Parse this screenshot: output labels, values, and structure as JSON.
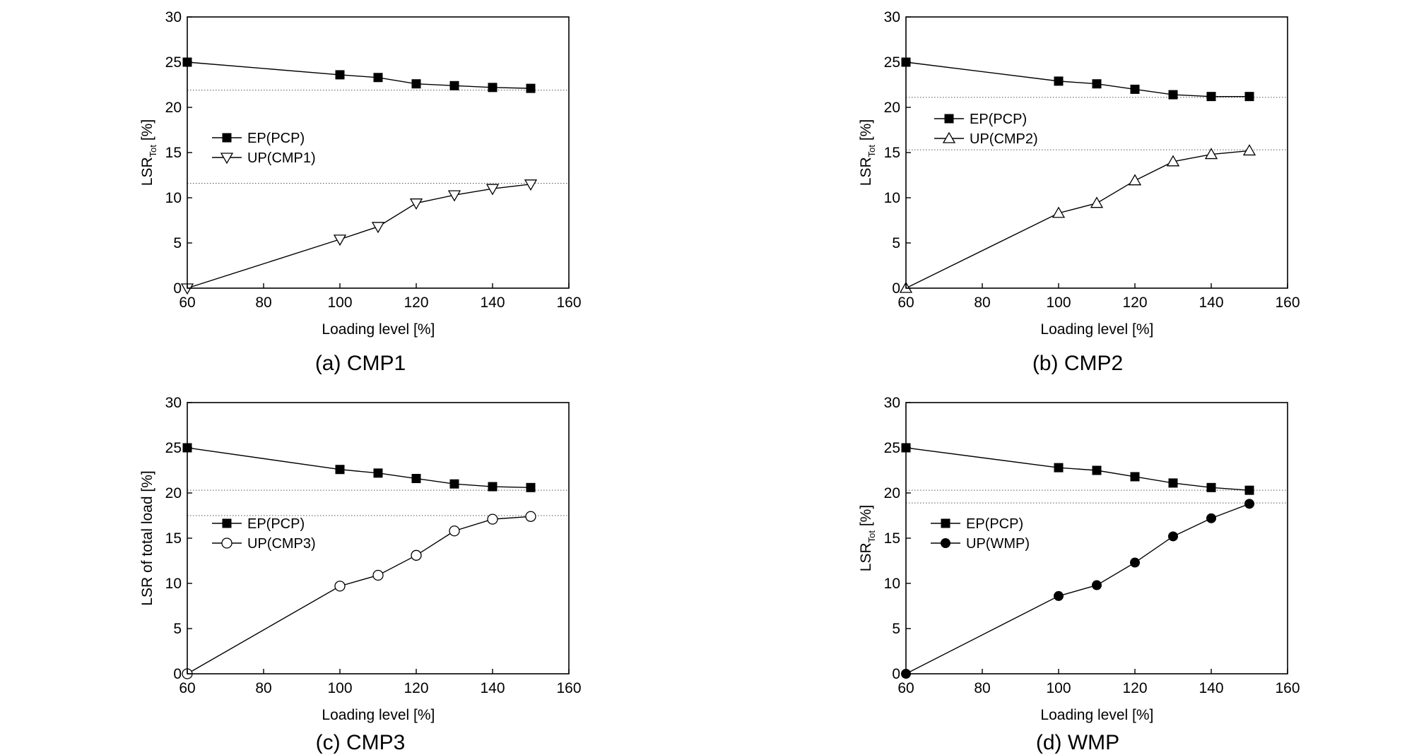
{
  "chart_data": [
    {
      "type": "line",
      "caption": "(a) CMP1",
      "xlabel": "Loading level [%]",
      "ylabel": "LSR",
      "ylabel_sub": "Tot",
      "ylabel_suffix": " [%]",
      "xlim": [
        60,
        160
      ],
      "ylim": [
        0,
        30
      ],
      "xticks": [
        60,
        80,
        100,
        120,
        140,
        160
      ],
      "yticks": [
        0,
        5,
        10,
        15,
        20,
        25,
        30
      ],
      "reference_lines": [
        21.9,
        11.6
      ],
      "legend_placement": "left-middle",
      "series": [
        {
          "name": "EP(PCP)",
          "marker": "square-filled",
          "x": [
            60,
            100,
            110,
            120,
            130,
            140,
            150
          ],
          "y": [
            25.0,
            23.6,
            23.3,
            22.6,
            22.4,
            22.2,
            22.1
          ]
        },
        {
          "name": "UP(CMP1)",
          "marker": "triangle-down-open",
          "x": [
            60,
            100,
            110,
            120,
            130,
            140,
            150
          ],
          "y": [
            0.0,
            5.4,
            6.8,
            9.4,
            10.3,
            11.0,
            11.5
          ]
        }
      ]
    },
    {
      "type": "line",
      "caption": "(b) CMP2",
      "xlabel": "Loading level [%]",
      "ylabel": "LSR",
      "ylabel_sub": "Tot",
      "ylabel_suffix": " [%]",
      "xlim": [
        60,
        160
      ],
      "ylim": [
        0,
        30
      ],
      "xticks": [
        60,
        80,
        100,
        120,
        140,
        160
      ],
      "yticks": [
        0,
        5,
        10,
        15,
        20,
        25,
        30
      ],
      "reference_lines": [
        21.1,
        15.3
      ],
      "legend_placement": "top-left",
      "series": [
        {
          "name": "EP(PCP)",
          "marker": "square-filled",
          "x": [
            60,
            100,
            110,
            120,
            130,
            140,
            150
          ],
          "y": [
            25.0,
            22.9,
            22.6,
            22.0,
            21.4,
            21.2,
            21.2
          ]
        },
        {
          "name": "UP(CMP2)",
          "marker": "triangle-up-open",
          "x": [
            60,
            100,
            110,
            120,
            130,
            140,
            150
          ],
          "y": [
            0.0,
            8.3,
            9.4,
            11.9,
            14.0,
            14.8,
            15.2
          ]
        }
      ]
    },
    {
      "type": "line",
      "caption": "(c) CMP3",
      "xlabel": "Loading level [%]",
      "ylabel": "LSR of total load [%]",
      "ylabel_sub": "",
      "ylabel_suffix": "",
      "xlim": [
        60,
        160
      ],
      "ylim": [
        0,
        30
      ],
      "xticks": [
        60,
        80,
        100,
        120,
        140,
        160
      ],
      "yticks": [
        0,
        5,
        10,
        15,
        20,
        25,
        30
      ],
      "reference_lines": [
        20.3,
        17.5
      ],
      "legend_placement": "left-middle",
      "series": [
        {
          "name": "EP(PCP)",
          "marker": "square-filled",
          "x": [
            60,
            100,
            110,
            120,
            130,
            140,
            150
          ],
          "y": [
            25.0,
            22.6,
            22.2,
            21.6,
            21.0,
            20.7,
            20.6
          ]
        },
        {
          "name": "UP(CMP3)",
          "marker": "circle-open",
          "x": [
            60,
            100,
            110,
            120,
            130,
            140,
            150
          ],
          "y": [
            0.0,
            9.7,
            10.9,
            13.1,
            15.8,
            17.1,
            17.4
          ]
        }
      ]
    },
    {
      "type": "line",
      "caption": "(d) WMP",
      "xlabel": "Loading level [%]",
      "ylabel": "LSR",
      "ylabel_sub": "Tot",
      "ylabel_suffix": " [%]",
      "xlim": [
        60,
        160
      ],
      "ylim": [
        0,
        30
      ],
      "xticks": [
        60,
        80,
        100,
        120,
        140,
        160
      ],
      "yticks": [
        0,
        5,
        10,
        15,
        20,
        25,
        30
      ],
      "reference_lines": [
        20.3,
        18.9
      ],
      "legend_placement": "left-middle",
      "series": [
        {
          "name": "EP(PCP)",
          "marker": "square-filled",
          "x": [
            60,
            100,
            110,
            120,
            130,
            140,
            150
          ],
          "y": [
            25.0,
            22.8,
            22.5,
            21.8,
            21.1,
            20.6,
            20.3
          ]
        },
        {
          "name": "UP(WMP)",
          "marker": "circle-filled",
          "x": [
            60,
            100,
            110,
            120,
            130,
            140,
            150
          ],
          "y": [
            0.0,
            8.6,
            9.8,
            12.3,
            15.2,
            17.2,
            18.8
          ]
        }
      ]
    }
  ]
}
